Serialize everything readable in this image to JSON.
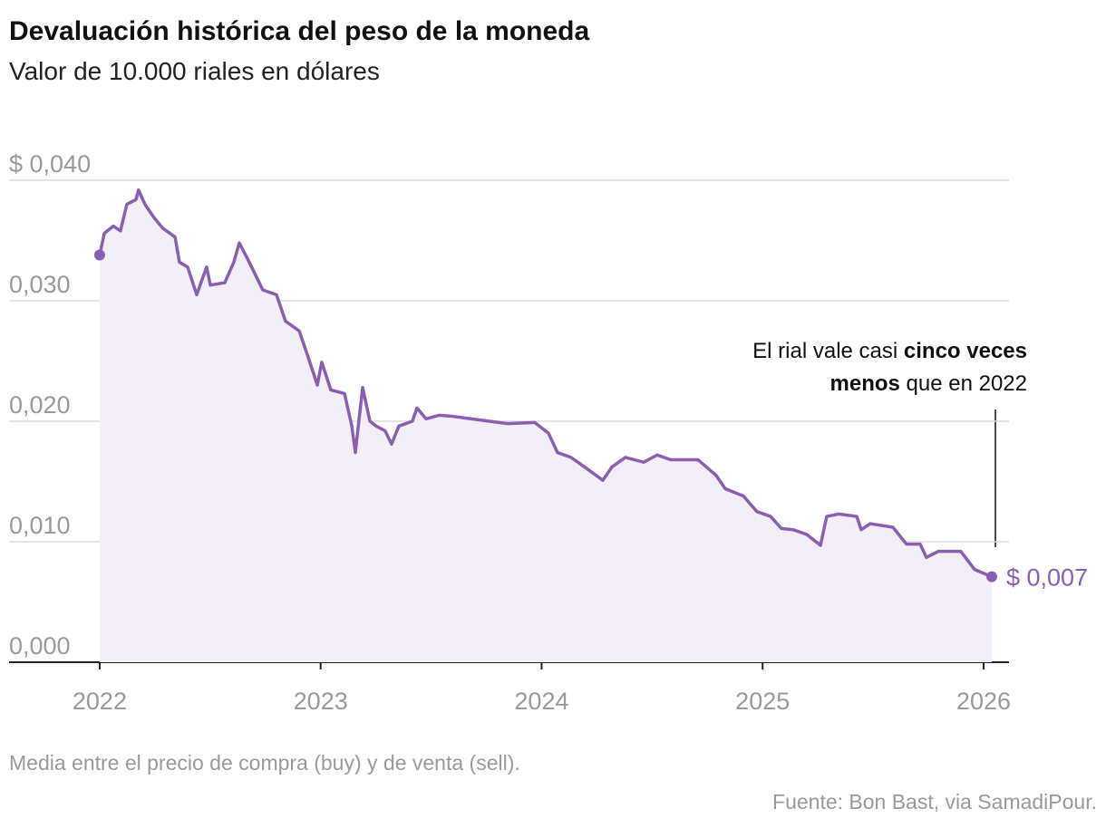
{
  "chart_data": {
    "type": "line",
    "title": "Devaluación histórica del peso de la moneda",
    "subtitle": "Valor de 10.000 riales en dólares",
    "note": "Media entre el precio de compra (buy) y de venta (sell).",
    "source": "Fuente: Bon Bast, via SamadiPour.",
    "annotation": [
      [
        {
          "text": "El rial vale casi "
        },
        {
          "text": "cinco veces",
          "bold": true
        }
      ],
      [
        {
          "text": "menos",
          "bold": true
        },
        {
          "text": " que en 2022"
        }
      ]
    ],
    "xlim": [
      2021.59,
      2026.115
    ],
    "xticks": [
      2022,
      2023,
      2024,
      2025,
      2026
    ],
    "ylim": [
      0,
      0.04
    ],
    "yticks": [
      {
        "value": 0,
        "label": "0,000"
      },
      {
        "value": 0.01,
        "label": "0,010"
      },
      {
        "value": 0.02,
        "label": "0,020"
      },
      {
        "value": 0.03,
        "label": "0,030"
      },
      {
        "value": 0.04,
        "label": "$ 0,040"
      }
    ],
    "grid": true,
    "series": [
      {
        "color": "#8b5fb0",
        "fill": "#f3eff8",
        "x": [
          2022.0,
          2022.021,
          2022.062,
          2022.094,
          2022.123,
          2022.164,
          2022.176,
          2022.205,
          2022.246,
          2022.287,
          2022.341,
          2022.361,
          2022.398,
          2022.439,
          2022.484,
          2022.501,
          2022.566,
          2022.607,
          2022.632,
          2022.677,
          2022.738,
          2022.8,
          2022.841,
          2022.903,
          2022.944,
          2022.985,
          2023.005,
          2023.046,
          2023.108,
          2023.141,
          2023.157,
          2023.19,
          2023.223,
          2023.251,
          2023.292,
          2023.321,
          2023.354,
          2023.415,
          2023.436,
          2023.477,
          2023.538,
          2023.6,
          2023.682,
          2023.764,
          2023.846,
          2023.969,
          2024.031,
          2024.072,
          2024.133,
          2024.195,
          2024.277,
          2024.318,
          2024.379,
          2024.462,
          2024.523,
          2024.585,
          2024.708,
          2024.79,
          2024.831,
          2024.913,
          2024.974,
          2025.036,
          2025.085,
          2025.138,
          2025.2,
          2025.262,
          2025.29,
          2025.344,
          2025.426,
          2025.446,
          2025.487,
          2025.59,
          2025.651,
          2025.713,
          2025.741,
          2025.795,
          2025.897,
          2025.959,
          2026.037
        ],
        "values": [
          0.0338,
          0.0356,
          0.0362,
          0.0358,
          0.038,
          0.0384,
          0.0392,
          0.038,
          0.0369,
          0.036,
          0.0353,
          0.0332,
          0.0328,
          0.0305,
          0.0328,
          0.0313,
          0.0315,
          0.0332,
          0.0348,
          0.0332,
          0.0309,
          0.0305,
          0.0283,
          0.0275,
          0.0253,
          0.023,
          0.0249,
          0.0226,
          0.0223,
          0.0196,
          0.0174,
          0.0228,
          0.02,
          0.0196,
          0.0192,
          0.0181,
          0.0196,
          0.02,
          0.0211,
          0.0202,
          0.0205,
          0.0204,
          0.0202,
          0.02,
          0.0198,
          0.0199,
          0.019,
          0.0174,
          0.017,
          0.0162,
          0.0151,
          0.0162,
          0.017,
          0.0166,
          0.0172,
          0.0168,
          0.0168,
          0.0155,
          0.0144,
          0.0138,
          0.0125,
          0.0121,
          0.0111,
          0.011,
          0.0106,
          0.0097,
          0.0121,
          0.0123,
          0.0121,
          0.011,
          0.0115,
          0.0112,
          0.0098,
          0.0098,
          0.0087,
          0.0092,
          0.0092,
          0.0077,
          0.0071
        ],
        "value_labels": [
          null,
          null,
          null,
          null,
          null,
          null,
          null,
          null,
          null,
          null,
          null,
          null,
          null,
          null,
          null,
          null,
          null,
          null,
          null,
          null,
          null,
          null,
          null,
          null,
          null,
          null,
          null,
          null,
          null,
          null,
          null,
          null,
          null,
          null,
          null,
          null,
          null,
          null,
          null,
          null,
          null,
          null,
          null,
          null,
          null,
          null,
          null,
          null,
          null,
          null,
          null,
          null,
          null,
          null,
          null,
          null,
          null,
          null,
          null,
          null,
          null,
          null,
          null,
          null,
          null,
          null,
          null,
          null,
          null,
          null,
          null,
          null,
          null,
          null,
          null,
          null,
          null,
          null,
          "$ 0,007"
        ]
      }
    ]
  }
}
